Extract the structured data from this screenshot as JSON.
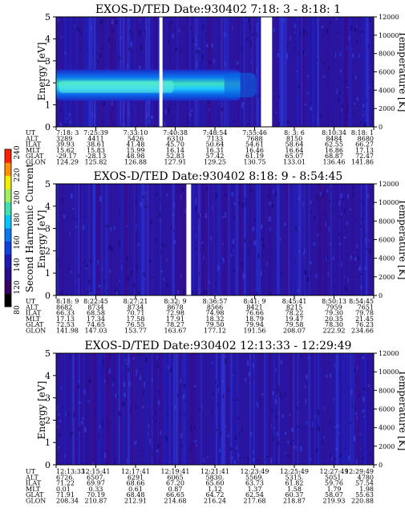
{
  "colorbar": {
    "label": "Second Harmonic Current",
    "ticks": [
      "80",
      "120",
      "140",
      "160",
      "180",
      "200",
      "220",
      "240"
    ],
    "colors": [
      "#000000",
      "#3a0060",
      "#2a0a8c",
      "#1c1ab4",
      "#1040e0",
      "#0a78f0",
      "#00c8ff",
      "#40e0b0",
      "#a0f060",
      "#f0f000",
      "#ff9000",
      "#ff2000"
    ]
  },
  "chart_data": [
    {
      "type": "heatmap",
      "title": "EXOS-D/TED   Date:930402  7:18: 3 - 8:18: 1",
      "ylabel": "Energy [eV]",
      "ylabel_right": "Temperature [K]",
      "ylim": [
        0,
        5
      ],
      "ylim_right": [
        0,
        12000
      ],
      "yticks": [
        "0",
        "1",
        "2",
        "3",
        "4",
        "5"
      ],
      "yticks_right": [
        "0",
        "2000",
        "4000",
        "6000",
        "8000",
        "10000",
        "12000"
      ],
      "orbit_rows": [
        "UT",
        "ALT",
        "ILAT",
        "MLT",
        "GLAT",
        "GLON"
      ],
      "orbit_values": [
        [
          "7:18: 3",
          "7:25:39",
          "7:33:10",
          "7:40:38",
          "7:48:54",
          "7:55:46",
          "8: 3: 6",
          "8:10:34",
          "8:18: 1"
        ],
        [
          "3289",
          "4411",
          "5426",
          "6310",
          "7133",
          "7688",
          "8150",
          "8484",
          "8680"
        ],
        [
          "39.93",
          "38.61",
          "41.48",
          "45.70",
          "50.64",
          "54.61",
          "58.64",
          "62.55",
          "66.27"
        ],
        [
          "15.62",
          "15.83",
          "15.99",
          "16.14",
          "16.31",
          "16.46",
          "16.64",
          "16.86",
          "17.13"
        ],
        [
          "-29.17",
          "-28.13",
          "48.98",
          "52.83",
          "57.42",
          "61.19",
          "65.07",
          "68.87",
          "72.47"
        ],
        [
          "124.29",
          "125.82",
          "126.88",
          "127.91",
          "129.25",
          "130.75",
          "133.01",
          "136.46",
          "141.86"
        ]
      ],
      "band": {
        "center_ev": 1.9,
        "width_ev": 0.7,
        "end_fraction": 0.58
      },
      "gaps": [
        [
          0.325,
          0.335
        ],
        [
          0.645,
          0.68
        ]
      ]
    },
    {
      "type": "heatmap",
      "title": "EXOS-D/TED   Date:930402  8:18: 9 - 8:54:45",
      "ylabel": "Energy [eV]",
      "ylabel_right": "Temperature [K]",
      "ylim": [
        0,
        5
      ],
      "ylim_right": [
        0,
        12000
      ],
      "yticks": [
        "0",
        "1",
        "2",
        "3",
        "4",
        "5"
      ],
      "yticks_right": [
        "0",
        "2000",
        "4000",
        "6000",
        "8000",
        "10000",
        "12000"
      ],
      "orbit_rows": [
        "UT",
        "ALT",
        "ILAT",
        "MLT",
        "GLAT",
        "GLON"
      ],
      "orbit_values": [
        [
          "8:18: 9",
          "8:22:45",
          "8:27:21",
          "8:32: 9",
          "8:36:57",
          "8:41: 9",
          "8:45:41",
          "8:50:13",
          "8:54:45"
        ],
        [
          "8682",
          "8734",
          "8734",
          "8678",
          "8566",
          "8421",
          "8215",
          "7959",
          "7651"
        ],
        [
          "66.33",
          "68.58",
          "70.71",
          "72.98",
          "74.98",
          "76.66",
          "78.22",
          "79.30",
          "79.78"
        ],
        [
          "17.13",
          "17.34",
          "17.58",
          "17.91",
          "18.32",
          "18.79",
          "19.47",
          "20.35",
          "21.45"
        ],
        [
          "72.53",
          "74.65",
          "76.55",
          "78.27",
          "79.50",
          "79.94",
          "79.58",
          "78.30",
          "76.23"
        ],
        [
          "141.98",
          "147.03",
          "153.77",
          "163.67",
          "177.12",
          "191.56",
          "208.07",
          "222.92",
          "234.66"
        ]
      ],
      "gaps": [
        [
          0.41,
          0.425
        ]
      ]
    },
    {
      "type": "heatmap",
      "title": "EXOS-D/TED   Date:930402  12:13:33 - 12:29:49",
      "ylabel": "Energy [eV]",
      "ylabel_right": "Temperature [K]",
      "ylim": [
        0,
        5
      ],
      "ylim_right": [
        0,
        12000
      ],
      "yticks": [
        "0",
        "1",
        "2",
        "3",
        "4",
        "5"
      ],
      "yticks_right": [
        "0",
        "2000",
        "4000",
        "6000",
        "8000",
        "10000",
        "12000"
      ],
      "orbit_rows": [
        "UT",
        "ALT",
        "ILAT",
        "MLT",
        "GLAT",
        "GLON"
      ],
      "orbit_values": [
        [
          "12:13:33",
          "12:15:41",
          "12:17:41",
          "12:19:41",
          "12:21:41",
          "12:23:49",
          "12:25:49",
          "12:27:49",
          "12:29:49"
        ],
        [
          "6726.",
          "6507.",
          "6291",
          "6065",
          "5830.",
          "5569.",
          "5315.",
          "5051.",
          "4780"
        ],
        [
          "71.22",
          "69.97",
          "68.66",
          "67.20",
          "65.60",
          "63.73",
          "61.82",
          "59.76",
          "57.54"
        ],
        [
          "0.01",
          "0.33",
          "0.61",
          "0.87",
          "1.12",
          "1.37",
          "1.58",
          "1.79",
          "1.98"
        ],
        [
          "71.91",
          "70.19",
          "68.48",
          "66.65",
          "64.72",
          "62.54",
          "60.37",
          "58.07",
          "55.63"
        ],
        [
          "208.34",
          "210.87",
          "212.91",
          "214.68",
          "216.24",
          "217.68",
          "218.87",
          "219.93",
          "220.88"
        ]
      ],
      "gaps": []
    }
  ]
}
